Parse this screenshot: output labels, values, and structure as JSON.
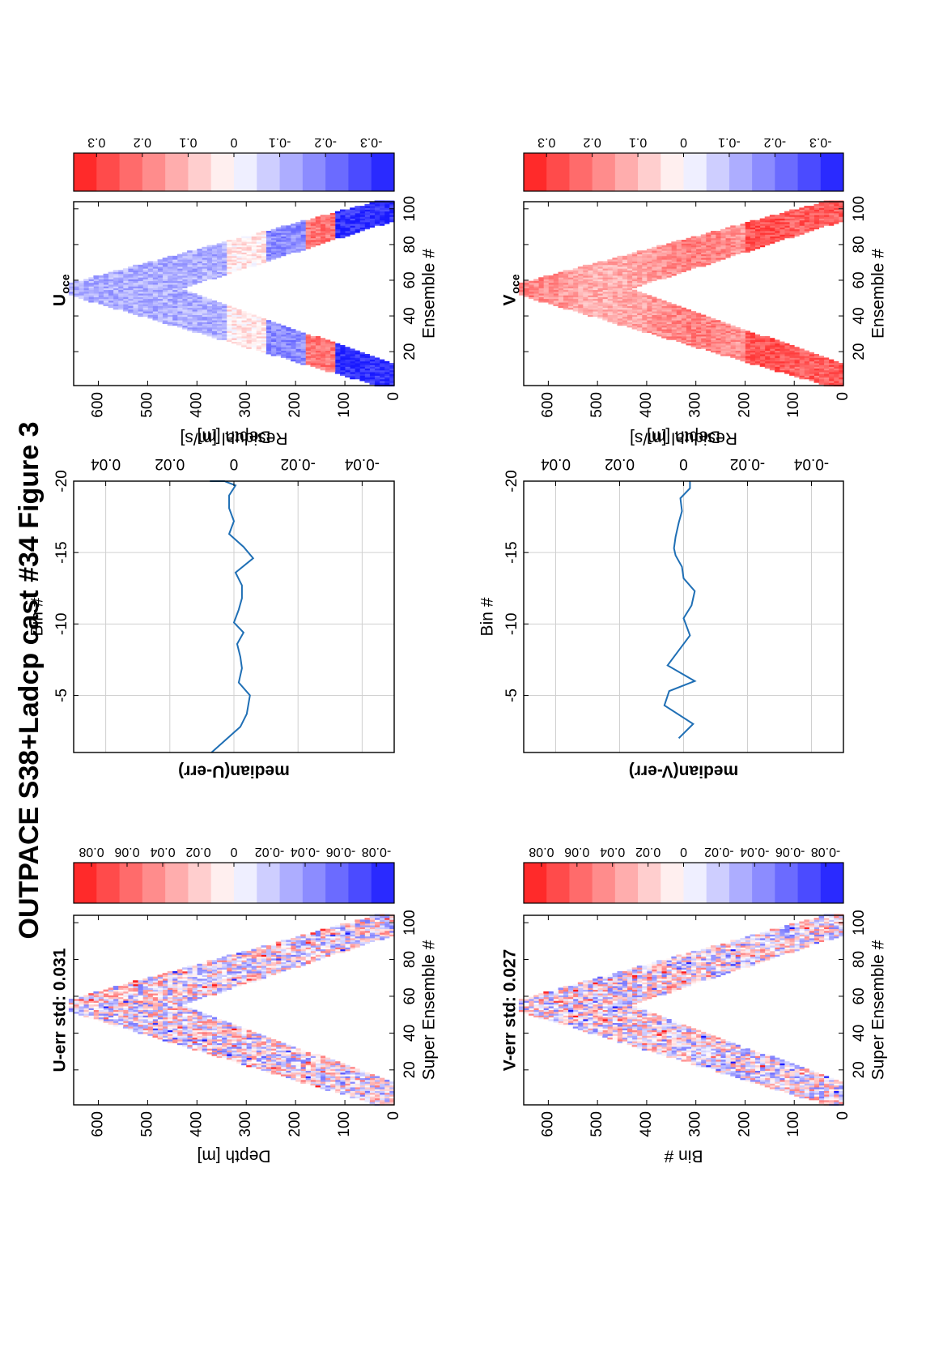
{
  "figure_title": "OUTPACE S38+Ladcp cast #34  Figure 3",
  "colors": {
    "red": "#ff1a1a",
    "blue": "#1a1aff",
    "line": "#1f6fb5",
    "grid": "#d0d0d0"
  },
  "chart_data": [
    {
      "id": "u-err",
      "type": "heatmap",
      "title": "U-err std: 0.031",
      "xlabel": "Super Ensemble #",
      "ylabel": "Depth [m]",
      "xticks": [
        "20",
        "40",
        "60",
        "80",
        "100"
      ],
      "yticks": [
        "0",
        "100",
        "200",
        "300",
        "400",
        "500",
        "600"
      ],
      "xlim": [
        1,
        104
      ],
      "ylim": [
        0,
        650
      ],
      "v_shape": {
        "start": 1,
        "apex": 55,
        "end": 104,
        "apex_depth": 640
      },
      "colorbar": {
        "range": [
          -0.09,
          0.09
        ],
        "ticks": [
          "0.08",
          "0.06",
          "0.04",
          "0.02",
          "0",
          "-0.02",
          "-0.04",
          "-0.06",
          "-0.08"
        ]
      }
    },
    {
      "id": "median-u",
      "type": "line",
      "title": "median(U-err)",
      "xlabel": "Residual [m/s]",
      "ylabel": "Bin #",
      "xticks": [
        "-0.04",
        "-0.02",
        "0",
        "0.02",
        "0.04"
      ],
      "yticks": [
        "-5",
        "-10",
        "-15",
        "-20"
      ],
      "xlim": [
        -0.05,
        0.05
      ],
      "ylim": [
        -1,
        -20
      ],
      "grid": true,
      "series": [
        {
          "x": [
            0.007,
            -0.002,
            -0.004,
            -0.005,
            -0.0015,
            -0.0025,
            -0.002,
            -0.001,
            -0.003,
            0.0,
            -0.0015,
            -0.0025,
            -0.0025,
            -0.0005,
            -0.006,
            -0.003,
            0.0015,
            0.0,
            0.0015,
            0.0015,
            -0.0005,
            0.003,
            0.0075
          ],
          "y": [
            -1,
            -2.8,
            -3.7,
            -5,
            -5.9,
            -6.9,
            -7.7,
            -8.6,
            -9.4,
            -10.1,
            -11,
            -11.8,
            -12.7,
            -13.6,
            -14.6,
            -15.4,
            -16.3,
            -17.2,
            -18.1,
            -19,
            -19.7,
            -20,
            -20
          ]
        }
      ]
    },
    {
      "id": "u-oce",
      "type": "heatmap",
      "title": "U",
      "title_subscript": "oce",
      "xlabel": "Ensemble #",
      "ylabel": "Depth [m]",
      "xticks": [
        "20",
        "40",
        "60",
        "80",
        "100"
      ],
      "yticks": [
        "0",
        "100",
        "200",
        "300",
        "400",
        "500",
        "600"
      ],
      "xlim": [
        1,
        104
      ],
      "ylim": [
        0,
        650
      ],
      "v_shape": {
        "start": 1,
        "apex": 55,
        "end": 104,
        "apex_depth": 640
      },
      "colorbar": {
        "range": [
          -0.35,
          0.35
        ],
        "ticks": [
          "0.3",
          "0.2",
          "0.1",
          "0",
          "-0.1",
          "-0.2",
          "-0.3"
        ]
      }
    },
    {
      "id": "v-err",
      "type": "heatmap",
      "title": "V-err std: 0.027",
      "xlabel": "Super Ensemble #",
      "ylabel": "Bin #",
      "xticks": [
        "20",
        "40",
        "60",
        "80",
        "100"
      ],
      "yticks": [
        "0",
        "100",
        "200",
        "300",
        "400",
        "500",
        "600"
      ],
      "xlim": [
        1,
        104
      ],
      "ylim": [
        0,
        650
      ],
      "v_shape": {
        "start": 1,
        "apex": 55,
        "end": 104,
        "apex_depth": 640
      },
      "colorbar": {
        "range": [
          -0.09,
          0.09
        ],
        "ticks": [
          "0.08",
          "0.06",
          "0.04",
          "0.02",
          "0",
          "-0.02",
          "-0.04",
          "-0.06",
          "-0.08"
        ]
      }
    },
    {
      "id": "median-v",
      "type": "line",
      "title": "median(V-err)",
      "xlabel": "Residual [m/s]",
      "ylabel": "Bin #",
      "xticks": [
        "-0.04",
        "-0.02",
        "0",
        "0.02",
        "0.04"
      ],
      "yticks": [
        "-5",
        "-10",
        "-15",
        "-20"
      ],
      "xlim": [
        -0.05,
        0.05
      ],
      "ylim": [
        -1,
        -20
      ],
      "grid": true,
      "series": [
        {
          "x": [
            0.0015,
            -0.003,
            0.006,
            0.0045,
            -0.0035,
            0.005,
            0.001,
            -0.002,
            0.0,
            -0.0025,
            -0.0035,
            0.0,
            0.0005,
            0.0025,
            0.003,
            0.0025,
            0.0015,
            0.0005,
            0.001,
            -0.002,
            -0.002
          ],
          "y": [
            -2,
            -3,
            -4.3,
            -5.3,
            -6,
            -7.1,
            -8.3,
            -9.2,
            -10.4,
            -11.3,
            -12.3,
            -13.2,
            -14,
            -14.8,
            -15.3,
            -16.1,
            -17.1,
            -17.9,
            -18.8,
            -19.5,
            -20
          ]
        }
      ]
    },
    {
      "id": "v-oce",
      "type": "heatmap",
      "title": "V",
      "title_subscript": "oce",
      "xlabel": "Ensemble #",
      "ylabel": "Depth [m]",
      "xticks": [
        "20",
        "40",
        "60",
        "80",
        "100"
      ],
      "yticks": [
        "0",
        "100",
        "200",
        "300",
        "400",
        "500",
        "600"
      ],
      "xlim": [
        1,
        104
      ],
      "ylim": [
        0,
        650
      ],
      "v_shape": {
        "start": 1,
        "apex": 55,
        "end": 104,
        "apex_depth": 640
      },
      "colorbar": {
        "range": [
          -0.35,
          0.35
        ],
        "ticks": [
          "0.3",
          "0.2",
          "0.1",
          "0",
          "-0.1",
          "-0.2",
          "-0.3"
        ]
      }
    }
  ]
}
